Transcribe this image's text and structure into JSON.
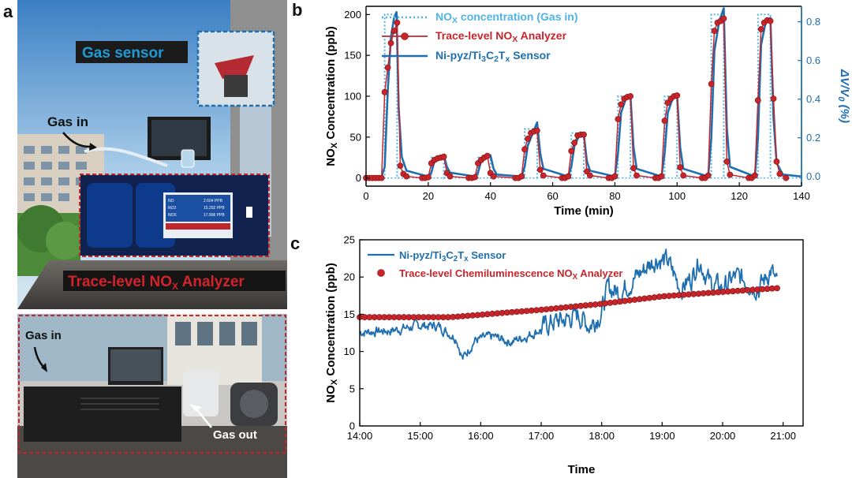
{
  "panels": {
    "a": "a",
    "b": "b",
    "c": "c"
  },
  "photo": {
    "gas_sensor_label": "Gas sensor",
    "gas_in_top": "Gas in",
    "analyzer_label": "Trace-level NO",
    "analyzer_sub": "X",
    "analyzer_suffix": " Analyzer",
    "gas_in_bottom": "Gas in",
    "gas_out": "Gas out",
    "screen_rows": [
      {
        "name": "NO",
        "value": "2.604 PPB"
      },
      {
        "name": "NO2",
        "value": "15.202 PPB"
      },
      {
        "name": "NOX",
        "value": "17.806 PPB"
      }
    ],
    "colors": {
      "sensor_box": "#1f6fb0",
      "analyzer_box": "#c0272d",
      "label_text": "#1e9bd7"
    }
  },
  "chart_data": [
    {
      "id": "b",
      "type": "line",
      "xlabel": "Time (min)",
      "ylabel_left": "NOx Concentration (ppb)",
      "ylabel_right": "ΔV/V0 (%)",
      "xlim": [
        0,
        140
      ],
      "ylim_left": [
        -10,
        210
      ],
      "ylim_right": [
        -0.05,
        0.88
      ],
      "xticks": [
        0,
        20,
        40,
        60,
        80,
        100,
        120,
        140
      ],
      "yticks_left": [
        0,
        50,
        100,
        150,
        200
      ],
      "yticks_right": [
        0.0,
        0.2,
        0.4,
        0.6,
        0.8
      ],
      "legend": [
        {
          "label": "NOx concentration (Gas in)",
          "color": "#4fb3e6",
          "style": "dotted"
        },
        {
          "label": "Trace-level NOx Analyzer",
          "color": "#c8252b",
          "style": "line-marker"
        },
        {
          "label": "Ni-pyz/Ti3C2Tx Sensor",
          "color": "#1f6fb0",
          "style": "line"
        }
      ],
      "pulses": [
        {
          "start": 6,
          "end": 10,
          "level": 200
        },
        {
          "start": 21,
          "end": 25,
          "level": 25
        },
        {
          "start": 36,
          "end": 40,
          "level": 25
        },
        {
          "start": 51,
          "end": 55,
          "level": 60
        },
        {
          "start": 66,
          "end": 70,
          "level": 55
        },
        {
          "start": 81,
          "end": 85,
          "level": 100
        },
        {
          "start": 96,
          "end": 100,
          "level": 100
        },
        {
          "start": 111,
          "end": 115,
          "level": 200
        },
        {
          "start": 126,
          "end": 130,
          "level": 200
        }
      ],
      "analyzer_points": [
        [
          0,
          0
        ],
        [
          1,
          0
        ],
        [
          2,
          0
        ],
        [
          3,
          0
        ],
        [
          4,
          0
        ],
        [
          5,
          0
        ],
        [
          6,
          105
        ],
        [
          7,
          135
        ],
        [
          8,
          165
        ],
        [
          9,
          180
        ],
        [
          10,
          190
        ],
        [
          11,
          15
        ],
        [
          12,
          5
        ],
        [
          13,
          2
        ],
        [
          18,
          0
        ],
        [
          19,
          0
        ],
        [
          20,
          1
        ],
        [
          21,
          18
        ],
        [
          22,
          22
        ],
        [
          23,
          24
        ],
        [
          24,
          25
        ],
        [
          25,
          26
        ],
        [
          26,
          6
        ],
        [
          27,
          2
        ],
        [
          33,
          0
        ],
        [
          34,
          0
        ],
        [
          35,
          1
        ],
        [
          36,
          18
        ],
        [
          37,
          22
        ],
        [
          38,
          25
        ],
        [
          39,
          27
        ],
        [
          40,
          6
        ],
        [
          41,
          2
        ],
        [
          48,
          0
        ],
        [
          49,
          0
        ],
        [
          50,
          2
        ],
        [
          51,
          35
        ],
        [
          52,
          48
        ],
        [
          53,
          55
        ],
        [
          54,
          57
        ],
        [
          55,
          58
        ],
        [
          56,
          10
        ],
        [
          57,
          3
        ],
        [
          63,
          0
        ],
        [
          64,
          0
        ],
        [
          65,
          2
        ],
        [
          66,
          33
        ],
        [
          67,
          43
        ],
        [
          68,
          52
        ],
        [
          69,
          53
        ],
        [
          70,
          53
        ],
        [
          71,
          8
        ],
        [
          72,
          3
        ],
        [
          78,
          0
        ],
        [
          79,
          0
        ],
        [
          80,
          2
        ],
        [
          81,
          72
        ],
        [
          82,
          90
        ],
        [
          83,
          97
        ],
        [
          84,
          99
        ],
        [
          85,
          100
        ],
        [
          86,
          12
        ],
        [
          87,
          3
        ],
        [
          93,
          0
        ],
        [
          94,
          0
        ],
        [
          95,
          2
        ],
        [
          96,
          70
        ],
        [
          97,
          92
        ],
        [
          98,
          97
        ],
        [
          99,
          100
        ],
        [
          100,
          101
        ],
        [
          101,
          13
        ],
        [
          102,
          3
        ],
        [
          108,
          0
        ],
        [
          109,
          0
        ],
        [
          110,
          3
        ],
        [
          111,
          115
        ],
        [
          112,
          180
        ],
        [
          113,
          190
        ],
        [
          114,
          192
        ],
        [
          115,
          195
        ],
        [
          116,
          20
        ],
        [
          117,
          4
        ],
        [
          123,
          0
        ],
        [
          124,
          0
        ],
        [
          125,
          3
        ],
        [
          126,
          95
        ],
        [
          127,
          182
        ],
        [
          128,
          190
        ],
        [
          129,
          193
        ],
        [
          130,
          192
        ],
        [
          131,
          97
        ],
        [
          132,
          20
        ],
        [
          133,
          5
        ],
        [
          135,
          0
        ]
      ],
      "sensor_points": [
        [
          0,
          0.0
        ],
        [
          5,
          0.0
        ],
        [
          6,
          0.05
        ],
        [
          7,
          0.45
        ],
        [
          8,
          0.72
        ],
        [
          9,
          0.82
        ],
        [
          9.8,
          0.85
        ],
        [
          10.5,
          0.35
        ],
        [
          11.5,
          0.1
        ],
        [
          13,
          0.03
        ],
        [
          20,
          0.0
        ],
        [
          21,
          0.02
        ],
        [
          22,
          0.08
        ],
        [
          23.5,
          0.1
        ],
        [
          25,
          0.11
        ],
        [
          26,
          0.05
        ],
        [
          27,
          0.02
        ],
        [
          35,
          0.0
        ],
        [
          36,
          0.02
        ],
        [
          37,
          0.08
        ],
        [
          38.5,
          0.1
        ],
        [
          40,
          0.11
        ],
        [
          41,
          0.04
        ],
        [
          42,
          0.01
        ],
        [
          50,
          0.0
        ],
        [
          51,
          0.05
        ],
        [
          52,
          0.16
        ],
        [
          53.5,
          0.22
        ],
        [
          55,
          0.28
        ],
        [
          56,
          0.12
        ],
        [
          57,
          0.04
        ],
        [
          65,
          0.0
        ],
        [
          66,
          0.05
        ],
        [
          67,
          0.16
        ],
        [
          68.5,
          0.21
        ],
        [
          70,
          0.22
        ],
        [
          71,
          0.08
        ],
        [
          72,
          0.03
        ],
        [
          80,
          0.0
        ],
        [
          81,
          0.12
        ],
        [
          82,
          0.33
        ],
        [
          83.5,
          0.4
        ],
        [
          85,
          0.42
        ],
        [
          86,
          0.15
        ],
        [
          87,
          0.04
        ],
        [
          95,
          0.0
        ],
        [
          96,
          0.12
        ],
        [
          97,
          0.33
        ],
        [
          98.5,
          0.4
        ],
        [
          100,
          0.42
        ],
        [
          101,
          0.15
        ],
        [
          102,
          0.04
        ],
        [
          110,
          0.0
        ],
        [
          111,
          0.2
        ],
        [
          112,
          0.65
        ],
        [
          113.5,
          0.8
        ],
        [
          115,
          0.87
        ],
        [
          116,
          0.25
        ],
        [
          117,
          0.05
        ],
        [
          125,
          0.0
        ],
        [
          126,
          0.2
        ],
        [
          127,
          0.68
        ],
        [
          128.5,
          0.8
        ],
        [
          130,
          0.82
        ],
        [
          131,
          0.3
        ],
        [
          132,
          0.07
        ],
        [
          134,
          0.01
        ],
        [
          140,
          0.0
        ]
      ]
    },
    {
      "id": "c",
      "type": "line",
      "xlabel": "Time",
      "ylabel": "NOx Concentration (ppb)",
      "xlim": [
        0,
        7.33
      ],
      "ylim": [
        0,
        25
      ],
      "xticks": [
        0,
        1,
        2,
        3,
        4,
        5,
        6,
        7
      ],
      "xtick_labels": [
        "14:00",
        "15:00",
        "16:00",
        "17:00",
        "18:00",
        "19:00",
        "20:00",
        "21:00"
      ],
      "yticks": [
        0,
        5,
        10,
        15,
        20,
        25
      ],
      "legend": [
        {
          "label": "Ni-pyz/Ti3C2Tx Sensor",
          "color": "#1f6fb0",
          "style": "line"
        },
        {
          "label": "Trace-level Chemiluminescence NOx Analyzer",
          "color": "#c8252b",
          "style": "marker"
        }
      ],
      "analyzer_series": {
        "x_start": 0,
        "x_end": 6.9,
        "n": 86,
        "anchors": [
          [
            0,
            14.6
          ],
          [
            1.5,
            14.6
          ],
          [
            3,
            15.6
          ],
          [
            4,
            16.4
          ],
          [
            5,
            17.4
          ],
          [
            6,
            18.0
          ],
          [
            6.9,
            18.5
          ]
        ]
      },
      "sensor_anchors": [
        [
          0,
          12.6
        ],
        [
          0.5,
          12.8
        ],
        [
          1.0,
          13.5
        ],
        [
          1.3,
          13.4
        ],
        [
          1.6,
          11.8
        ],
        [
          1.7,
          9.0
        ],
        [
          1.9,
          11.5
        ],
        [
          2.2,
          12.0
        ],
        [
          2.5,
          11.3
        ],
        [
          2.8,
          12.2
        ],
        [
          3.0,
          13.0
        ],
        [
          3.2,
          14.0
        ],
        [
          3.4,
          14.2
        ],
        [
          3.6,
          15.0
        ],
        [
          3.8,
          13.5
        ],
        [
          4.0,
          15.3
        ],
        [
          4.1,
          18.5
        ],
        [
          4.3,
          18.0
        ],
        [
          4.5,
          19.5
        ],
        [
          4.7,
          21.0
        ],
        [
          4.9,
          22.5
        ],
        [
          5.1,
          22.0
        ],
        [
          5.3,
          18.5
        ],
        [
          5.5,
          20.0
        ],
        [
          5.6,
          22.5
        ],
        [
          5.8,
          19.0
        ],
        [
          6.0,
          18.5
        ],
        [
          6.2,
          20.0
        ],
        [
          6.4,
          19.5
        ],
        [
          6.6,
          18.5
        ],
        [
          6.8,
          21.0
        ],
        [
          6.9,
          18.8
        ]
      ],
      "sensor_noise": {
        "seed": 7,
        "amplitude": 0.9,
        "step": 0.012
      }
    }
  ]
}
